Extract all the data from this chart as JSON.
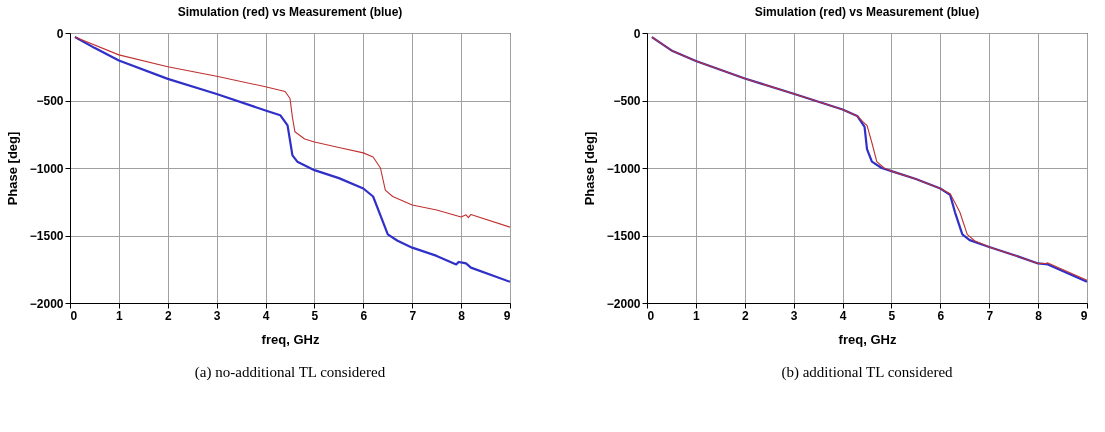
{
  "chart_data": [
    {
      "type": "line",
      "title": "Simulation (red) vs Measurement (blue)",
      "xlabel": "freq, GHz",
      "ylabel": "Phase [deg]",
      "annotations": [
        "(a) no-additional TL considered"
      ],
      "xlim": [
        0,
        9
      ],
      "ylim": [
        -2000,
        0
      ],
      "xticks": [
        0,
        1,
        2,
        3,
        4,
        5,
        6,
        7,
        8,
        9
      ],
      "yticks": [
        0,
        -500,
        -1000,
        -1500,
        -2000
      ],
      "grid": true,
      "marker": "none",
      "line_style": "solid",
      "series": [
        {
          "color": "#c03030",
          "x": [
            0.1,
            1,
            2,
            3,
            4,
            4.4,
            4.5,
            4.55,
            4.6,
            4.8,
            5,
            5.5,
            6,
            6.2,
            6.35,
            6.45,
            6.6,
            7,
            7.5,
            8,
            8.1,
            8.15,
            8.2,
            9
          ],
          "values": [
            -30,
            -162,
            -250,
            -321,
            -398,
            -433,
            -485,
            -625,
            -731,
            -785,
            -808,
            -848,
            -888,
            -918,
            -1000,
            -1164,
            -1211,
            -1274,
            -1311,
            -1363,
            -1347,
            -1368,
            -1344,
            -1438
          ]
        },
        {
          "color": "#3030c8",
          "x": [
            0.1,
            0.5,
            1,
            2,
            3,
            4,
            4.3,
            4.45,
            4.55,
            4.65,
            5,
            5.5,
            6,
            6.2,
            6.35,
            6.5,
            6.7,
            7,
            7.5,
            7.9,
            7.95,
            8.05,
            8.1,
            8.2,
            9
          ],
          "values": [
            -30,
            -110,
            -204,
            -340,
            -452,
            -574,
            -609,
            -684,
            -906,
            -953,
            -1016,
            -1075,
            -1152,
            -1211,
            -1351,
            -1492,
            -1539,
            -1590,
            -1651,
            -1714,
            -1696,
            -1703,
            -1707,
            -1738,
            -1843
          ]
        }
      ]
    },
    {
      "type": "line",
      "title": "Simulation (red) vs Measurement (blue)",
      "xlabel": "freq, GHz",
      "ylabel": "Phase [deg]",
      "annotations": [
        "(b) additional TL considered"
      ],
      "xlim": [
        0,
        9
      ],
      "ylim": [
        -2000,
        0
      ],
      "xticks": [
        0,
        1,
        2,
        3,
        4,
        5,
        6,
        7,
        8,
        9
      ],
      "yticks": [
        0,
        -500,
        -1000,
        -1500,
        -2000
      ],
      "grid": true,
      "marker": "none",
      "line_style": "solid",
      "series": [
        {
          "color": "#c03030",
          "x": [
            0.1,
            0.5,
            1,
            2,
            3,
            4,
            4.3,
            4.45,
            4.5,
            4.6,
            4.7,
            4.85,
            5,
            5.5,
            6,
            6.2,
            6.3,
            6.4,
            6.55,
            6.7,
            7,
            7.5,
            8,
            8.15,
            8.2,
            9
          ],
          "values": [
            -30,
            -129,
            -208,
            -337,
            -450,
            -567,
            -614,
            -670,
            -684,
            -813,
            -953,
            -1000,
            -1023,
            -1082,
            -1152,
            -1190,
            -1258,
            -1328,
            -1492,
            -1539,
            -1585,
            -1644,
            -1707,
            -1707,
            -1703,
            -1831
          ]
        },
        {
          "color": "#3030c8",
          "x": [
            0.1,
            0.5,
            1,
            2,
            3,
            4,
            4.3,
            4.45,
            4.5,
            4.6,
            4.8,
            5,
            5.5,
            6,
            6.2,
            6.3,
            6.45,
            6.6,
            7,
            7.5,
            8,
            8.2,
            9
          ],
          "values": [
            -30,
            -129,
            -208,
            -337,
            -450,
            -567,
            -614,
            -696,
            -860,
            -953,
            -1000,
            -1023,
            -1082,
            -1152,
            -1199,
            -1328,
            -1492,
            -1534,
            -1585,
            -1644,
            -1707,
            -1714,
            -1843
          ]
        }
      ]
    }
  ]
}
